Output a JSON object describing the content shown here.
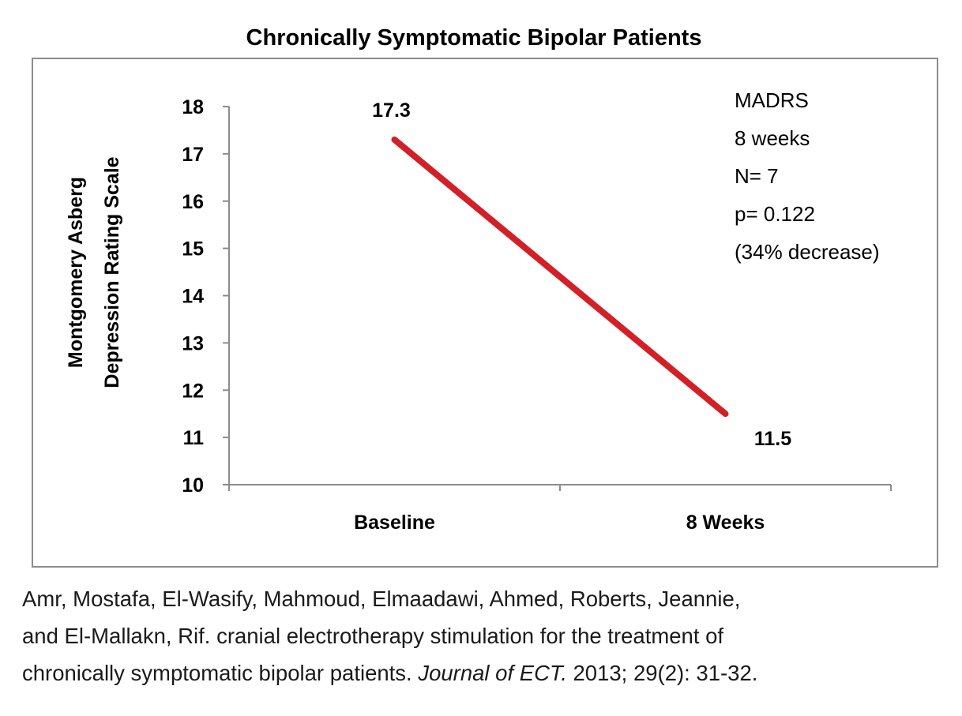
{
  "chart_data": {
    "type": "line",
    "title": "Chronically Symptomatic Bipolar Patients",
    "ylabel": [
      "Montgomery Asberg",
      "Depression Rating Scale"
    ],
    "xlabel": "",
    "categories": [
      "Baseline",
      "8 Weeks"
    ],
    "series": [
      {
        "values": [
          17.3,
          11.5
        ],
        "color": "#d32027"
      }
    ],
    "data_labels": [
      "17.3",
      "11.5"
    ],
    "ylim": [
      10,
      18
    ],
    "yticks": [
      10,
      11,
      12,
      13,
      14,
      15,
      16,
      17,
      18
    ],
    "grid": false,
    "legend": "none"
  },
  "stats": {
    "line1": "MADRS",
    "line2": "8 weeks",
    "line3": "N= 7",
    "line4": "p= 0.122",
    "line5": "(34% decrease)"
  },
  "citation": {
    "line1": "Amr, Mostafa, El-Wasify, Mahmoud, Elmaadawi, Ahmed, Roberts, Jeannie,",
    "line2": "and El-Mallakn, Rif. cranial electrotherapy stimulation for the treatment of",
    "line3_pre": "chronically symptomatic bipolar patients. ",
    "line3_journal": "Journal of ECT.",
    "line3_post": " 2013; 29(2): 31-32."
  }
}
